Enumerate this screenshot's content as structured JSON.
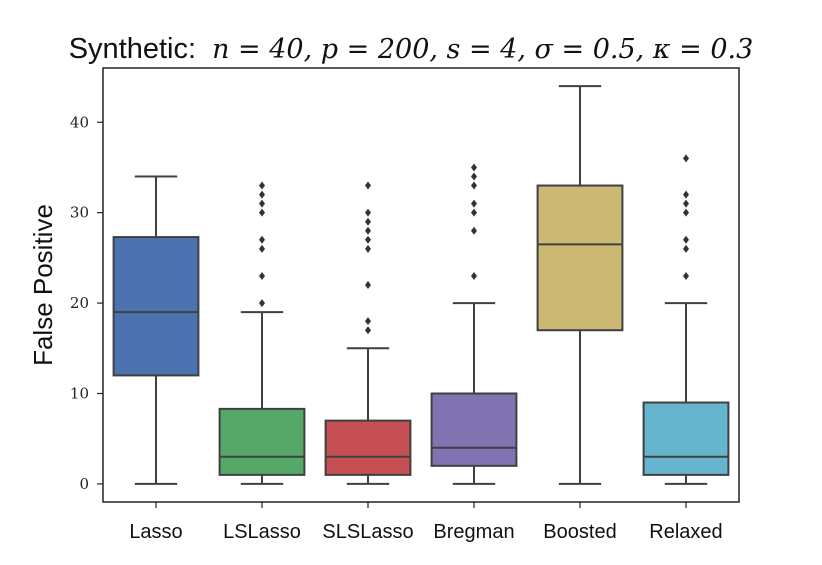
{
  "chart_data": {
    "type": "box",
    "title_prefix": "Synthetic:",
    "title_params": "n = 40, p = 200, s = 4, σ = 0.5, κ = 0.3",
    "ylabel": "False Positive",
    "xlabel": "",
    "ylim": [
      -2,
      46
    ],
    "yticks": [
      0,
      10,
      20,
      30,
      40
    ],
    "series": [
      {
        "name": "Lasso",
        "color": "#4c72b0",
        "whisker_low": 0,
        "q1": 12,
        "median": 19,
        "q3": 27.3,
        "whisker_high": 34,
        "outliers": []
      },
      {
        "name": "LSLasso",
        "color": "#55a868",
        "whisker_low": 0,
        "q1": 1,
        "median": 3,
        "q3": 8.3,
        "whisker_high": 19,
        "outliers": [
          20,
          23,
          26,
          27,
          30,
          31,
          32,
          33
        ]
      },
      {
        "name": "SLSLasso",
        "color": "#c44e52",
        "whisker_low": 0,
        "q1": 1,
        "median": 3,
        "q3": 7,
        "whisker_high": 15,
        "outliers": [
          17,
          18,
          22,
          26,
          27,
          28,
          29,
          30,
          33
        ]
      },
      {
        "name": "Bregman",
        "color": "#8172b2",
        "whisker_low": 0,
        "q1": 2,
        "median": 4,
        "q3": 10,
        "whisker_high": 20,
        "outliers": [
          23,
          28,
          30,
          31,
          33,
          34,
          35
        ]
      },
      {
        "name": "Boosted",
        "color": "#ccb974",
        "whisker_low": 0,
        "q1": 17,
        "median": 26.5,
        "q3": 33,
        "whisker_high": 44,
        "outliers": []
      },
      {
        "name": "Relaxed",
        "color": "#64b5cd",
        "whisker_low": 0,
        "q1": 1,
        "median": 3,
        "q3": 9,
        "whisker_high": 20,
        "outliers": [
          23,
          26,
          27,
          30,
          31,
          32,
          36
        ]
      }
    ]
  }
}
